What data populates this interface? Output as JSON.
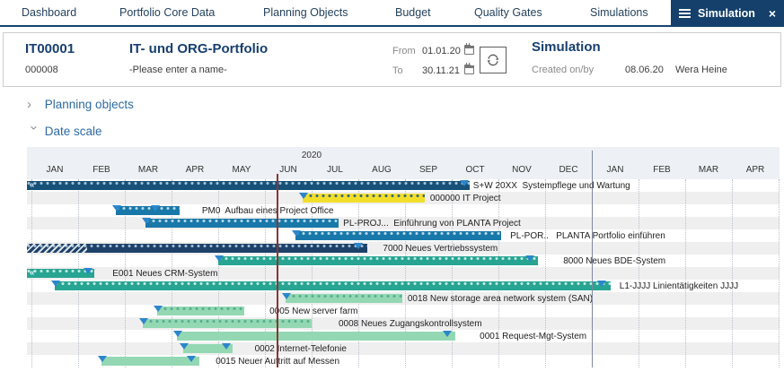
{
  "nav": {
    "items": [
      "Dashboard",
      "Portfolio Core Data",
      "Planning Objects",
      "Budget",
      "Quality Gates",
      "Simulations"
    ],
    "active_tab": {
      "label": "Simulation",
      "close_icon": "×"
    }
  },
  "header": {
    "portfolio_id": "IT00001",
    "portfolio_sub_id": "000008",
    "portfolio_title": "IT- und ORG-Portfolio",
    "portfolio_subtitle": "-Please enter a name-",
    "from_label": "From",
    "from_value": "01.01.20",
    "to_label": "To",
    "to_value": "30.11.21",
    "sim_title": "Simulation",
    "created_label": "Created on/by",
    "created_date": "08.06.20",
    "created_by": "Wera Heine"
  },
  "sections": {
    "planning_label": "Planning objects",
    "date_scale_label": "Date scale"
  },
  "chart_data": {
    "type": "gantt",
    "year_label": "2020",
    "months": [
      "JAN",
      "FEB",
      "MAR",
      "APR",
      "MAY",
      "JUN",
      "JUL",
      "AUG",
      "SEP",
      "OCT",
      "NOV",
      "DEC",
      "JAN",
      "FEB",
      "MAR",
      "APR"
    ],
    "axis_note": "months JAN 2020 through APR 2021, today marker at ~08.06.2020, solid line at 2020/2021 year boundary",
    "today_marker_month": 5.25,
    "year_boundary_month": 12,
    "colors": {
      "petrol": "#175178",
      "navy": "#1d4168",
      "blue": "#1878a9",
      "yellow": "#f2df2b",
      "teal": "#27a492",
      "green": "#93d8b3"
    },
    "dot_colors": {
      "petrol": "rgba(195,223,242,0.8)",
      "navy": "rgba(195,223,242,0.8)",
      "blue": "rgba(208,233,247,0.85)",
      "yellow": "rgba(23,81,140,0.85)",
      "teal": "rgba(218,246,239,0.85)",
      "green": "rgba(26,135,110,0.5)"
    },
    "marker_color": "#2c86cb",
    "bars": [
      {
        "label": "S+W 20XX  Systempflege und Wartung",
        "start": -0.1,
        "end": 9.38,
        "color": "petrol",
        "dots": true,
        "chevron": true,
        "markers": [
          9.27
        ],
        "gap": 4
      },
      {
        "label": "000000 IT Project",
        "start": 5.8,
        "end": 8.42,
        "color": "yellow",
        "dots": true,
        "chevron": false,
        "markers": [
          5.82
        ],
        "gap": 6
      },
      {
        "label": "PM0  Aufbau eines Project Office",
        "start": 1.8,
        "end": 3.17,
        "color": "blue",
        "dots": true,
        "chevron": false,
        "markers": [
          1.82,
          2.65
        ],
        "gap": 25
      },
      {
        "label": "PL-PROJ...  Einführung von PLANTA Project",
        "start": 2.45,
        "end": 6.58,
        "color": "blue",
        "dots": true,
        "chevron": false,
        "markers": [
          2.47
        ],
        "gap": 5
      },
      {
        "label": "PL-POR..   PLANTA Portfolio einführen",
        "start": 5.65,
        "end": 10.06,
        "color": "blue",
        "dots": true,
        "chevron": false,
        "markers": [
          5.67
        ],
        "gap": 10
      },
      {
        "label": "7000 Neues Vertriebssystem",
        "start": -0.1,
        "end": 7.2,
        "color": "navy",
        "dots": true,
        "chevron": false,
        "hatch_end": 1.2,
        "markers": [
          7.0
        ],
        "gap": 17
      },
      {
        "label": "8000 Neues BDE-System",
        "start": 4.0,
        "end": 10.85,
        "color": "teal",
        "dots": true,
        "chevron": false,
        "markers": [
          4.02,
          10.67
        ],
        "gap": 28
      },
      {
        "label": "E001 Neues CRM-System",
        "start": -0.1,
        "end": 1.35,
        "color": "teal",
        "dots": true,
        "chevron": true,
        "markers": [
          1.22
        ],
        "gap": 20
      },
      {
        "label": "L1-JJJJ Linientätigkeiten JJJJ",
        "start": 0.5,
        "end": 12.4,
        "color": "teal",
        "dots": true,
        "chevron": false,
        "markers": [
          0.52,
          12.22
        ],
        "gap": 10
      },
      {
        "label": "0018 New storage area network system (SAN)",
        "start": 5.44,
        "end": 7.94,
        "color": "green",
        "dots": true,
        "chevron": false,
        "markers": [
          5.46
        ],
        "gap": 6
      },
      {
        "label": "0005 New server farm",
        "start": 2.7,
        "end": 4.56,
        "color": "green",
        "dots": true,
        "chevron": false,
        "markers": [
          2.72
        ],
        "gap": 28
      },
      {
        "label": "0008 Neues Zugangskontrollsystem",
        "start": 2.38,
        "end": 6.0,
        "color": "green",
        "dots": true,
        "chevron": false,
        "markers": [
          2.4
        ],
        "gap": 30
      },
      {
        "label": "0001 Request-Mgt-System",
        "start": 3.12,
        "end": 9.08,
        "color": "green",
        "dots": false,
        "chevron": false,
        "markers": [
          3.14,
          8.9
        ],
        "gap": 27
      },
      {
        "label": "0002 Internet-Telefonie",
        "start": 3.25,
        "end": 4.3,
        "color": "green",
        "dots": false,
        "chevron": false,
        "markers": [
          3.27,
          4.17
        ],
        "gap": 25
      },
      {
        "label": "0015 Neuer Auftritt auf Messen",
        "start": 1.5,
        "end": 3.6,
        "color": "green",
        "dots": false,
        "chevron": false,
        "markers": [
          1.52,
          3.42
        ],
        "gap": 18
      }
    ]
  }
}
